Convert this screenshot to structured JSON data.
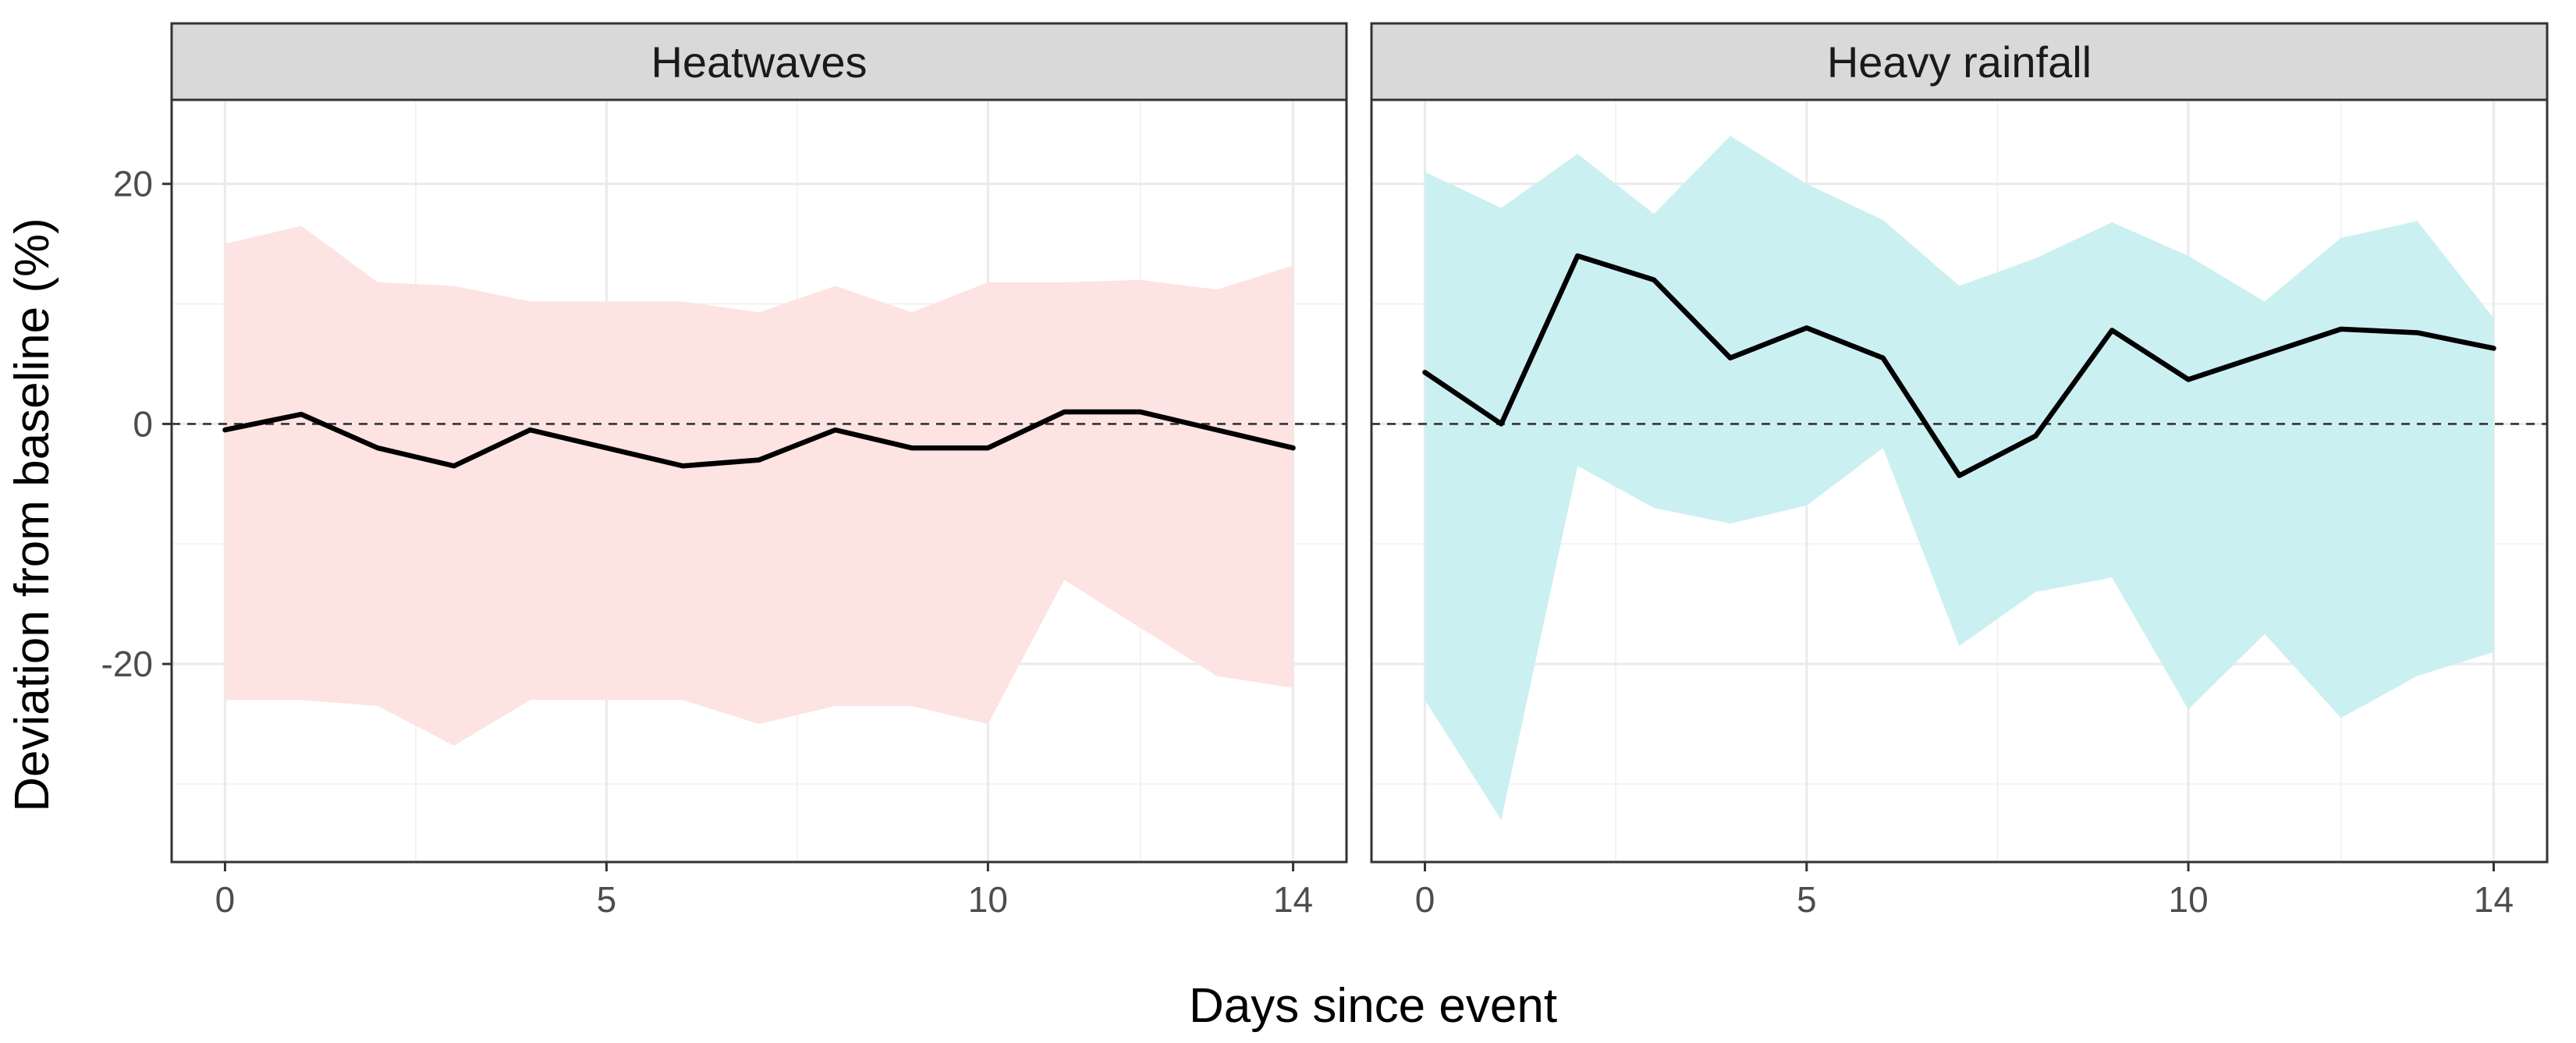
{
  "chart_data": {
    "type": "line",
    "xlabel": "Days since event",
    "ylabel": "Deviation from baseline (%)",
    "xlim": [
      -0.7,
      14.7
    ],
    "ylim": [
      -36.5,
      27
    ],
    "x_ticks": [
      0,
      5,
      10,
      14
    ],
    "x_minor": [
      2.5,
      7.5,
      12
    ],
    "y_ticks": [
      -20,
      0,
      20
    ],
    "y_minor": [
      -30,
      -10,
      10
    ],
    "reference_line": 0,
    "panels": [
      {
        "title": "Heatwaves",
        "ribbon_color": "#fde3e2",
        "x": [
          0,
          1,
          2,
          3,
          4,
          5,
          6,
          7,
          8,
          9,
          10,
          11,
          12,
          13,
          14
        ],
        "values": [
          -0.5,
          0.8,
          -2.0,
          -3.5,
          -0.5,
          -2.0,
          -3.5,
          -3.0,
          -0.5,
          -2.0,
          -2.0,
          1.0,
          1.0,
          -0.5,
          -2.0
        ],
        "lower": [
          -23,
          -23,
          -23.5,
          -26.8,
          -23,
          -23,
          -23,
          -25,
          -23.5,
          -23.5,
          -25,
          -13,
          -17,
          -21,
          -22
        ],
        "upper": [
          15,
          16.5,
          11.8,
          11.5,
          10.2,
          10.2,
          10.2,
          9.3,
          11.5,
          9.3,
          11.8,
          11.8,
          12,
          11.2,
          13.2
        ]
      },
      {
        "title": "Heavy rainfall",
        "ribbon_color": "#cbf0f2",
        "x": [
          0,
          1,
          2,
          3,
          4,
          5,
          6,
          7,
          8,
          9,
          10,
          11,
          12,
          13,
          14
        ],
        "values": [
          4.3,
          0.0,
          14.0,
          12.0,
          5.5,
          8.0,
          5.5,
          -4.3,
          -1.0,
          7.8,
          3.7,
          5.8,
          7.9,
          7.6,
          6.3
        ],
        "lower": [
          -23,
          -33,
          -3.5,
          -7,
          -8.3,
          -6.8,
          -2,
          -18.5,
          -14,
          -12.8,
          -23.8,
          -17.5,
          -24.5,
          -21,
          -19
        ],
        "upper": [
          21,
          18,
          22.5,
          17.5,
          24,
          20,
          17,
          11.5,
          13.8,
          16.8,
          14,
          10.2,
          15.5,
          16.9,
          8.8
        ]
      }
    ]
  }
}
